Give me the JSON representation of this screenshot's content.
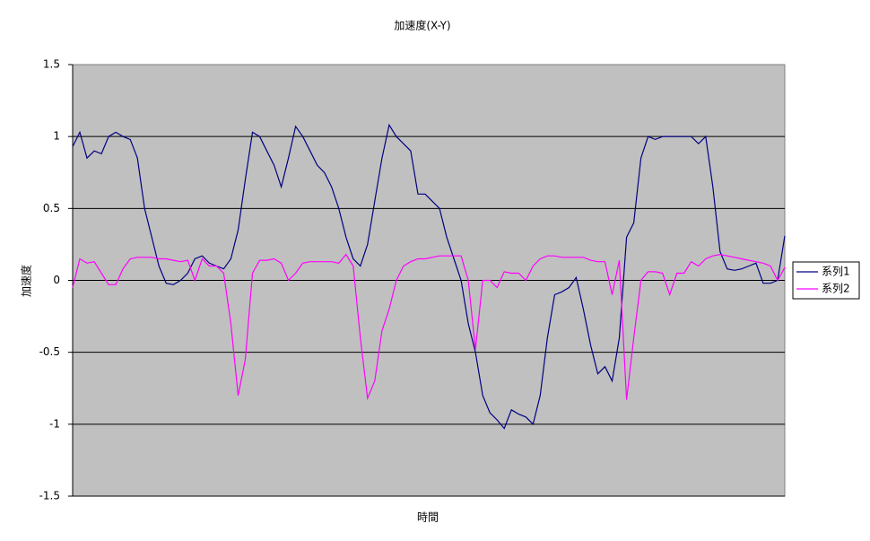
{
  "chart_data": {
    "type": "line",
    "title": "加速度(X-Y)",
    "x_label": "時間",
    "y_label": "加速度",
    "categories": [
      null,
      null,
      null,
      null,
      null,
      null,
      null,
      null,
      null,
      null,
      null,
      null,
      null,
      null,
      null,
      null,
      null,
      null,
      null,
      null,
      null,
      null,
      null,
      null,
      null,
      null,
      null,
      null,
      null,
      null,
      null,
      null,
      null,
      null,
      null,
      null,
      null,
      null,
      null,
      null,
      null,
      null,
      null,
      null,
      null,
      null,
      null,
      null,
      null,
      null,
      null,
      null,
      null,
      null,
      null,
      null,
      null,
      null,
      null,
      null,
      null,
      null,
      null,
      null,
      null,
      null,
      null,
      null,
      null,
      null,
      null,
      null,
      null,
      null,
      null,
      null,
      null,
      null,
      null,
      null,
      null,
      null,
      null,
      null,
      null,
      null,
      null,
      null,
      null,
      null,
      null,
      null,
      null,
      null,
      null,
      null,
      null,
      null,
      null,
      null
    ],
    "series": [
      {
        "name": "系列1",
        "color": "#000080",
        "values": [
          0.93,
          1.03,
          0.85,
          0.9,
          0.88,
          1.0,
          1.03,
          1.0,
          0.98,
          0.85,
          0.5,
          0.3,
          0.1,
          -0.02,
          -0.03,
          0.0,
          0.05,
          0.15,
          0.17,
          0.12,
          0.1,
          0.08,
          0.15,
          0.35,
          0.7,
          1.03,
          1.0,
          0.9,
          0.8,
          0.65,
          0.85,
          1.07,
          1.0,
          0.9,
          0.8,
          0.75,
          0.65,
          0.5,
          0.3,
          0.15,
          0.1,
          0.25,
          0.55,
          0.85,
          1.08,
          1.0,
          0.95,
          0.9,
          0.6,
          0.6,
          0.55,
          0.5,
          0.3,
          0.15,
          0.0,
          -0.3,
          -0.5,
          -0.8,
          -0.92,
          -0.97,
          -1.03,
          -0.9,
          -0.93,
          -0.95,
          -1.0,
          -0.8,
          -0.4,
          -0.1,
          -0.08,
          -0.05,
          0.02,
          -0.2,
          -0.45,
          -0.65,
          -0.6,
          -0.7,
          -0.4,
          0.3,
          0.4,
          0.85,
          1.0,
          0.98,
          1.0,
          1.0,
          1.0,
          1.0,
          1.0,
          0.95,
          1.0,
          0.65,
          0.2,
          0.08,
          0.07,
          0.08,
          0.1,
          0.12,
          -0.02,
          -0.02,
          0.0,
          0.31
        ]
      },
      {
        "name": "系列2",
        "color": "#ff00ff",
        "values": [
          -0.05,
          0.15,
          0.12,
          0.13,
          0.05,
          -0.03,
          -0.03,
          0.08,
          0.15,
          0.16,
          0.16,
          0.16,
          0.15,
          0.15,
          0.14,
          0.13,
          0.14,
          0.0,
          0.15,
          0.1,
          0.1,
          0.05,
          -0.3,
          -0.8,
          -0.55,
          0.05,
          0.14,
          0.14,
          0.15,
          0.12,
          0.0,
          0.05,
          0.12,
          0.13,
          0.13,
          0.13,
          0.13,
          0.12,
          0.18,
          0.1,
          -0.4,
          -0.82,
          -0.7,
          -0.35,
          -0.2,
          0.0,
          0.1,
          0.13,
          0.15,
          0.15,
          0.16,
          0.17,
          0.17,
          0.17,
          0.17,
          0.0,
          -0.48,
          0.0,
          0.0,
          -0.05,
          0.06,
          0.05,
          0.05,
          0.0,
          0.1,
          0.15,
          0.17,
          0.17,
          0.16,
          0.16,
          0.16,
          0.16,
          0.14,
          0.13,
          0.13,
          -0.1,
          0.14,
          -0.83,
          -0.4,
          0.0,
          0.06,
          0.06,
          0.05,
          -0.1,
          0.05,
          0.05,
          0.13,
          0.1,
          0.15,
          0.17,
          0.18,
          0.17,
          0.16,
          0.15,
          0.14,
          0.13,
          0.12,
          0.1,
          0.0,
          0.09
        ]
      }
    ],
    "ylim": [
      -1.5,
      1.5
    ],
    "yticks": [
      -1.5,
      -1,
      -0.5,
      0,
      0.5,
      1,
      1.5
    ],
    "grid": true,
    "plot_background": "#c0c0c0",
    "legend": "right"
  }
}
